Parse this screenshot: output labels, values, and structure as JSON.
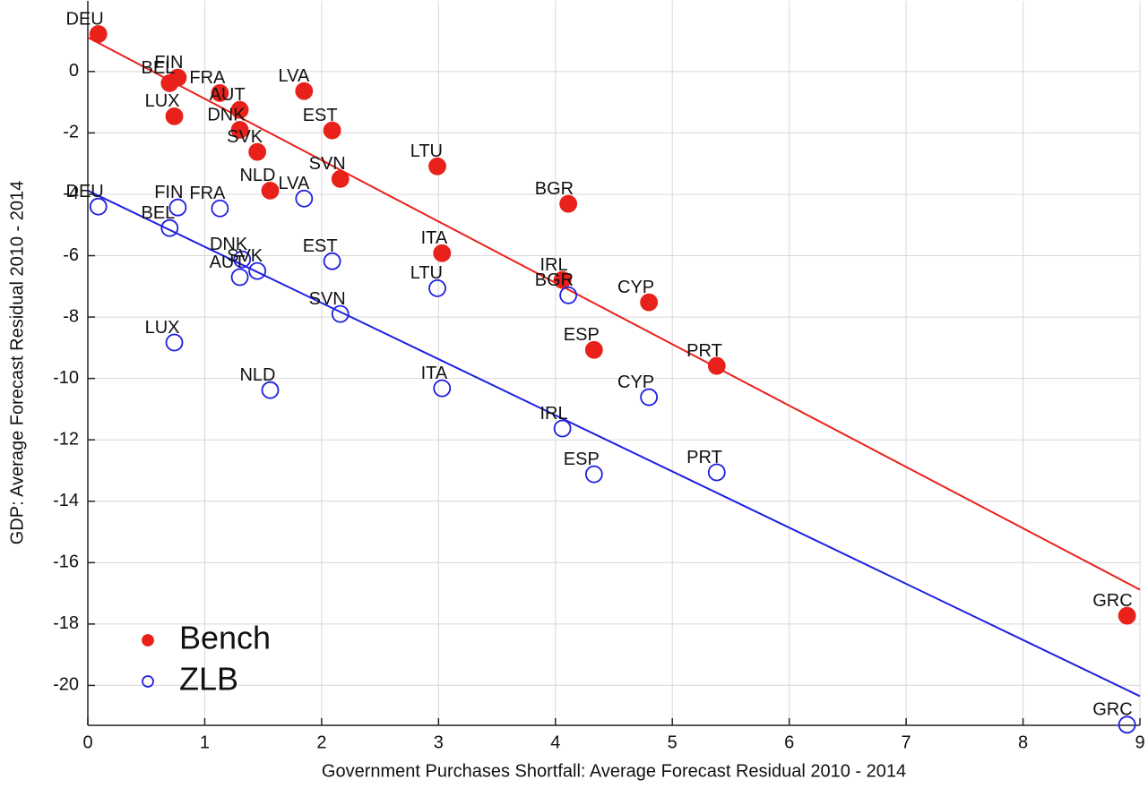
{
  "chart_data": {
    "type": "scatter",
    "xlabel": "Government Purchases Shortfall: Average Forecast Residual 2010 - 2014",
    "ylabel": "GDP: Average Forecast Residual 2010 - 2014",
    "xlim": [
      0,
      9
    ],
    "ylim": [
      -21.3,
      2.3
    ],
    "xticks": [
      0,
      1,
      2,
      3,
      4,
      5,
      6,
      7,
      8,
      9
    ],
    "yticks": [
      -20,
      -18,
      -16,
      -14,
      -12,
      -10,
      -8,
      -6,
      -4,
      -2,
      0
    ],
    "grid": true,
    "legend": "lower-left",
    "series": [
      {
        "name": "Bench",
        "color": "#e8211b",
        "filled": true,
        "labels": [
          "DEU",
          "FIN",
          "BEL",
          "FRA",
          "AUT",
          "LUX",
          "DNK",
          "SVK",
          "LVA",
          "EST",
          "LTU",
          "SVN",
          "NLD",
          "BGR",
          "ITA",
          "IRL",
          "CYP",
          "ESP",
          "PRT",
          "GRC"
        ],
        "x": [
          0.09,
          0.77,
          0.7,
          1.13,
          1.3,
          0.74,
          1.3,
          1.45,
          1.85,
          2.09,
          2.99,
          2.16,
          1.56,
          4.11,
          3.03,
          4.06,
          4.8,
          4.33,
          5.38,
          8.89
        ],
        "values": [
          1.22,
          -0.2,
          -0.38,
          -0.7,
          -1.25,
          -1.46,
          -1.9,
          -2.62,
          -0.64,
          -1.92,
          -3.09,
          -3.5,
          -3.88,
          -4.31,
          -5.92,
          -6.79,
          -7.52,
          -9.07,
          -9.59,
          -17.73
        ],
        "fit": [
          1.11,
          -16.88
        ]
      },
      {
        "name": "ZLB",
        "color": "#1f1fe0",
        "filled": false,
        "labels": [
          "DEU",
          "FIN",
          "FRA",
          "BEL",
          "LVA",
          "DNK",
          "SVK",
          "AUT",
          "EST",
          "LTU",
          "SVN",
          "BGR",
          "LUX",
          "NLD",
          "ITA",
          "IRL",
          "CYP",
          "ESP",
          "PRT",
          "GRC"
        ],
        "x": [
          0.09,
          0.77,
          1.13,
          0.7,
          1.85,
          1.32,
          1.45,
          1.3,
          2.09,
          2.99,
          2.16,
          4.11,
          0.74,
          1.56,
          3.03,
          4.06,
          4.8,
          4.33,
          5.38,
          8.89
        ],
        "values": [
          -4.4,
          -4.43,
          -4.46,
          -5.1,
          -4.14,
          -6.12,
          -6.5,
          -6.7,
          -6.18,
          -7.06,
          -7.9,
          -7.29,
          -8.83,
          -10.38,
          -10.32,
          -11.63,
          -10.61,
          -13.12,
          -13.06,
          -21.28
        ],
        "fit": [
          -3.88,
          -20.35
        ]
      }
    ]
  }
}
